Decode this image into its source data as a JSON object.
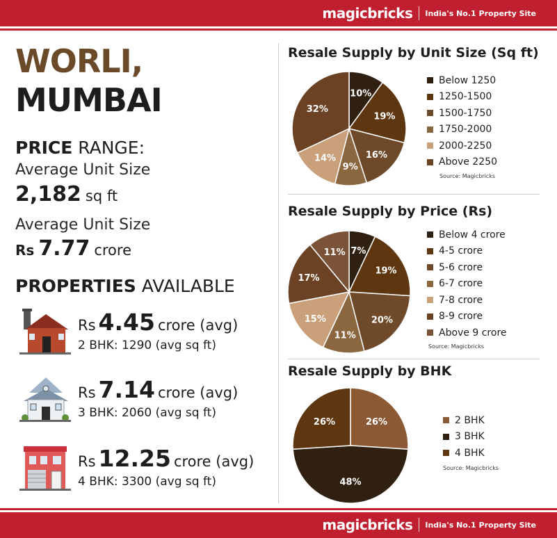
{
  "brand": {
    "logo": "magicbricks",
    "tagline": "India's No.1 Property Site"
  },
  "city": {
    "line1": "WORLI,",
    "line2": "MUMBAI"
  },
  "price_range": {
    "heading_bold": "PRICE",
    "heading_rest": " RANGE:"
  },
  "avg_size": {
    "label": "Average Unit Size",
    "value": "2,182",
    "unit": "sq ft"
  },
  "avg_price": {
    "label": "Average Unit Size",
    "prefix": "Rs",
    "value": "7.77",
    "unit": "crore"
  },
  "properties": {
    "heading_bold": "PROPERTIES",
    "heading_rest": " AVAILABLE",
    "items": [
      {
        "prefix": "Rs",
        "price": "4.45",
        "suffix": "crore (avg)",
        "bhk": "2 BHK: 1290 (avg sq ft)",
        "icon": "brick-house-icon"
      },
      {
        "prefix": "Rs",
        "price": "7.14",
        "suffix": "crore (avg)",
        "bhk": "3 BHK: 2060 (avg sq ft)",
        "icon": "villa-house-icon"
      },
      {
        "prefix": "Rs",
        "price": "12.25",
        "suffix": "crore (avg)",
        "bhk": "4 BHK: 3300 (avg sq ft)",
        "icon": "townhouse-icon"
      }
    ]
  },
  "source_text": "Source: Magicbricks",
  "chart_data": [
    {
      "type": "pie",
      "title": "Resale Supply by Unit Size (Sq ft)",
      "categories": [
        "Below 1250",
        "1250-1500",
        "1500-1750",
        "1750-2000",
        "2000-2250",
        "Above 2250"
      ],
      "values": [
        10,
        19,
        16,
        9,
        14,
        32
      ],
      "labels": [
        "10%",
        "19%",
        "16%",
        "9%",
        "14%",
        "32%"
      ],
      "colors": [
        "#2f2012",
        "#5e3710",
        "#6f4a2a",
        "#8b673f",
        "#c9a07a",
        "#6b4324"
      ]
    },
    {
      "type": "pie",
      "title": "Resale Supply by Price (Rs)",
      "categories": [
        "Below 4 crore",
        "4-5 crore",
        "5-6 crore",
        "6-7 crore",
        "7-8 crore",
        "8-9 crore",
        "Above 9 crore"
      ],
      "values": [
        7,
        19,
        20,
        11,
        15,
        17,
        11
      ],
      "labels": [
        "7%",
        "19%",
        "20%",
        "11%",
        "15%",
        "17%",
        "11%"
      ],
      "colors": [
        "#2f2012",
        "#5e3710",
        "#6f4a2a",
        "#8b673f",
        "#c9a07a",
        "#6b4324",
        "#7a5338"
      ]
    },
    {
      "type": "pie",
      "title": "Resale Supply by BHK",
      "categories": [
        "2 BHK",
        "3 BHK",
        "4 BHK"
      ],
      "values": [
        26,
        48,
        26
      ],
      "labels": [
        "26%",
        "48%",
        "26%"
      ],
      "colors": [
        "#8b5a35",
        "#2f2012",
        "#5e3710"
      ]
    }
  ]
}
